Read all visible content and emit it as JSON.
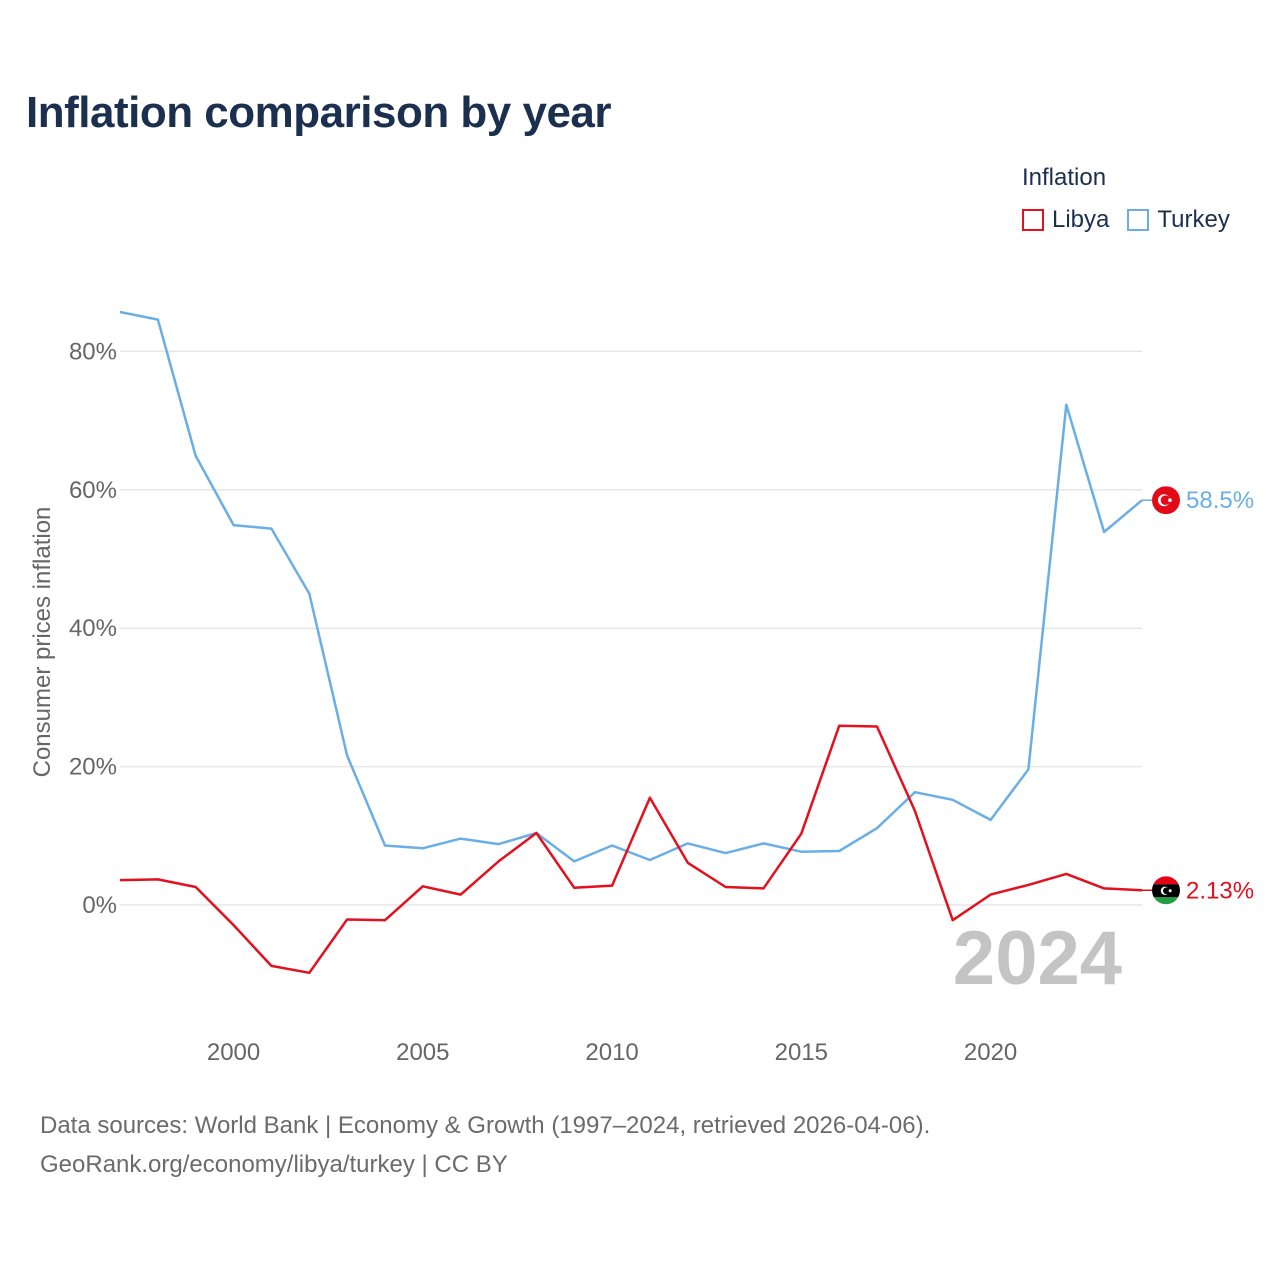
{
  "title": "Inflation comparison by year",
  "legend": {
    "title": "Inflation",
    "items": [
      {
        "label": "Libya",
        "color": "#e3101e"
      },
      {
        "label": "Turkey",
        "color": "#6aaee6"
      }
    ]
  },
  "footer": {
    "line1": "Data sources: World Bank | Economy & Growth (1997–2024, retrieved 2026-04-06).",
    "line2": "GeoRank.org/economy/libya/turkey | CC BY"
  },
  "colors": {
    "libya": "#e3101e",
    "turkey": "#6aaee6",
    "title": "#1b2f4e",
    "grid": "#e6e6e6",
    "axis_text": "#666666",
    "watermark": "#c4c4c4"
  },
  "chart_data": {
    "type": "line",
    "title": "Inflation comparison by year",
    "ylabel": "Consumer prices inflation",
    "xlabel": "",
    "xlim": [
      1997,
      2024
    ],
    "ylim": [
      -15,
      88
    ],
    "x_ticks": [
      2000,
      2005,
      2010,
      2015,
      2020
    ],
    "y_ticks": [
      0,
      20,
      40,
      60,
      80
    ],
    "y_tick_labels": [
      "0%",
      "20%",
      "40%",
      "60%",
      "80%"
    ],
    "x": [
      1997,
      1998,
      1999,
      2000,
      2001,
      2002,
      2003,
      2004,
      2005,
      2006,
      2007,
      2008,
      2009,
      2010,
      2011,
      2012,
      2013,
      2014,
      2015,
      2016,
      2017,
      2018,
      2019,
      2020,
      2021,
      2022,
      2023,
      2024
    ],
    "series": [
      {
        "name": "Turkey",
        "color": "#6aaee6",
        "end_label": "58.5%",
        "values": [
          85.7,
          84.6,
          64.9,
          54.9,
          54.4,
          45.0,
          21.6,
          8.6,
          8.2,
          9.6,
          8.8,
          10.4,
          6.3,
          8.6,
          6.5,
          8.9,
          7.5,
          8.9,
          7.7,
          7.8,
          11.1,
          16.3,
          15.2,
          12.3,
          19.6,
          72.3,
          53.9,
          58.5
        ]
      },
      {
        "name": "Libya",
        "color": "#e3101e",
        "end_label": "2.13%",
        "values": [
          3.6,
          3.7,
          2.6,
          -2.9,
          -8.8,
          -9.8,
          -2.1,
          -2.2,
          2.7,
          1.5,
          6.3,
          10.4,
          2.5,
          2.8,
          15.5,
          6.1,
          2.6,
          2.4,
          10.3,
          25.9,
          25.8,
          13.6,
          -2.2,
          1.5,
          2.9,
          4.5,
          2.4,
          2.13
        ]
      }
    ],
    "watermark_year": "2024"
  }
}
